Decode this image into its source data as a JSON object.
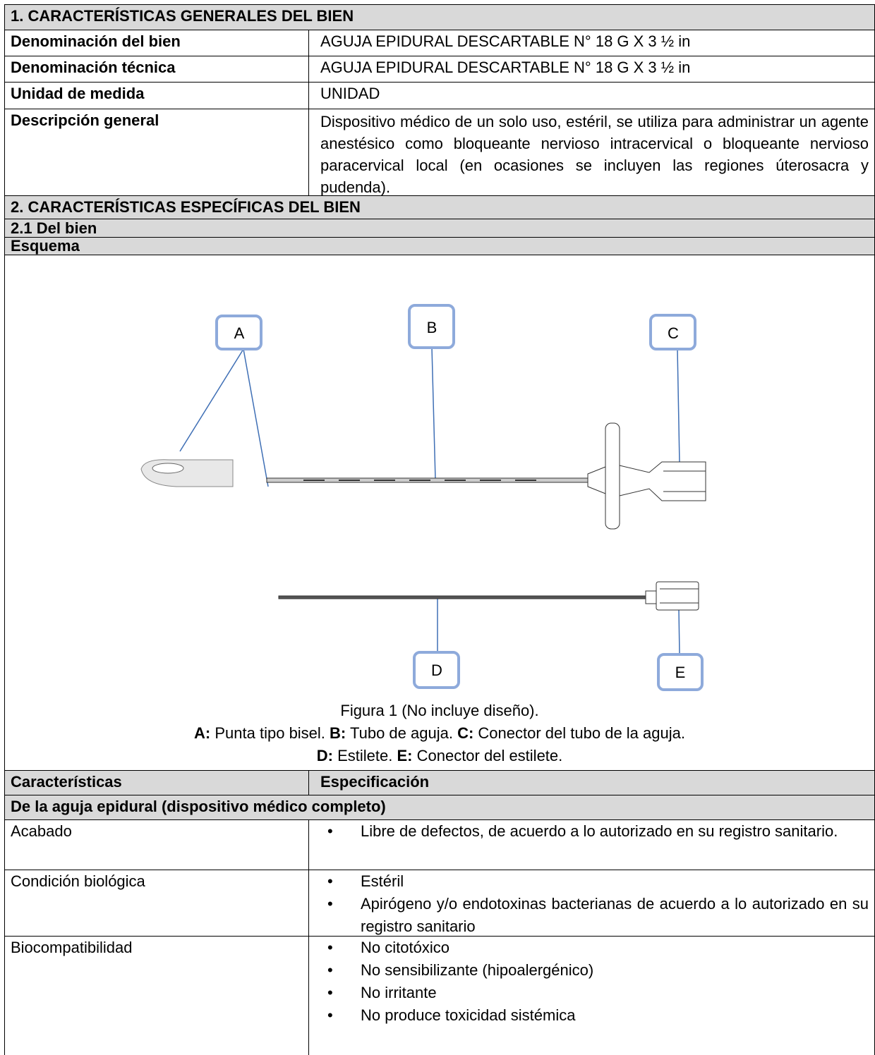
{
  "section1": {
    "title": "1. CARACTERÍSTICAS GENERALES DEL BIEN",
    "rows": [
      [
        "Denominación del bien",
        "AGUJA EPIDURAL DESCARTABLE N° 18 G X 3 ½ in"
      ],
      [
        "Denominación técnica",
        "AGUJA EPIDURAL DESCARTABLE N° 18 G X 3 ½ in"
      ],
      [
        "Unidad de medida",
        "UNIDAD"
      ],
      [
        "Descripción general",
        "Dispositivo médico de un solo uso, estéril, se utiliza para administrar un agente anestésico como bloqueante nervioso intracervical o bloqueante nervioso paracervical local (en ocasiones se incluyen las regiones úterosacra y pudenda)."
      ]
    ]
  },
  "section2": {
    "title": "2. CARACTERÍSTICAS ESPECÍFICAS DEL BIEN",
    "subtitle": "2.1 Del bien",
    "schema": "Esquema"
  },
  "figure": {
    "labels": [
      "A",
      "B",
      "C",
      "D",
      "E"
    ],
    "caption": "Figura 1 (No incluye diseño).",
    "legend": [
      [
        {
          "key": "A:",
          "text": "Punta tipo bisel."
        },
        {
          "key": "B:",
          "text": "Tubo de aguja."
        },
        {
          "key": "C:",
          "text": "Conector del tubo de la aguja."
        }
      ],
      [
        {
          "key": "D:",
          "text": "Estilete."
        },
        {
          "key": "E:",
          "text": "Conector del estilete."
        }
      ]
    ]
  },
  "specs": {
    "header": [
      "Características",
      "Especificación"
    ],
    "group": "De la aguja epidural (dispositivo médico completo)",
    "rows": [
      {
        "name": "Acabado",
        "items": [
          "Libre de defectos, de acuerdo a lo autorizado en su registro sanitario."
        ]
      },
      {
        "name": "Condición biológica",
        "items": [
          "Estéril",
          "Apirógeno y/o endotoxinas bacterianas de acuerdo a lo autorizado en su registro sanitario"
        ]
      },
      {
        "name": "Biocompatibilidad",
        "items": [
          "No citotóxico",
          "No sensibilizante (hipoalergénico)",
          "No irritante",
          "No produce toxicidad sistémica"
        ]
      }
    ]
  }
}
